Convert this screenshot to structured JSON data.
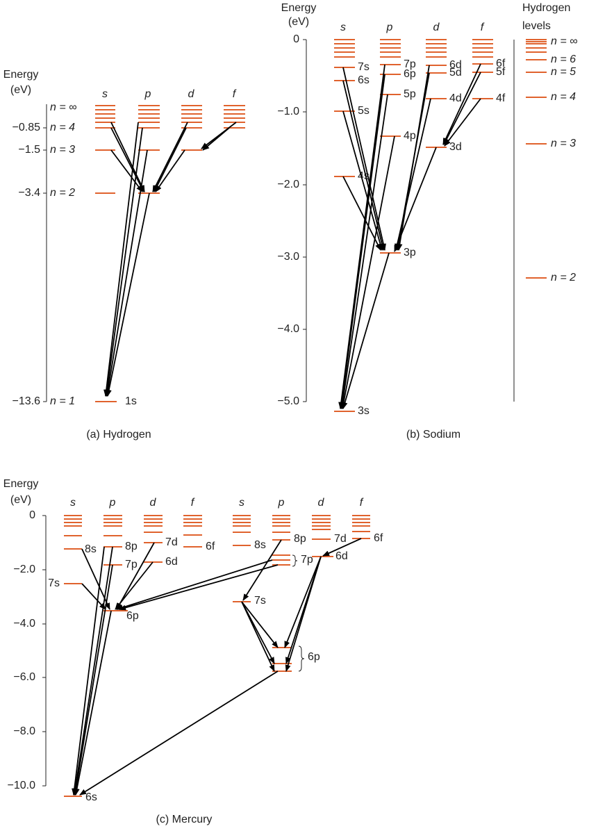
{
  "hydrogen": {
    "caption": "(a) Hydrogen",
    "axis_title": [
      "Energy",
      "(eV)"
    ],
    "ticks": [
      "−0.85",
      "−1.5",
      "−3.4",
      "−13.6"
    ],
    "columns": [
      "s",
      "p",
      "d",
      "f"
    ],
    "levels": [
      "n = ∞",
      "n = 4",
      "n = 3",
      "n = 2",
      "n = 1"
    ],
    "ground": "1s"
  },
  "sodium": {
    "caption": "(b) Sodium",
    "axis_title": [
      "Energy",
      "(eV)"
    ],
    "ticks": [
      "0",
      "−1.0",
      "−2.0",
      "−3.0",
      "−4.0",
      "−5.0"
    ],
    "columns": [
      "s",
      "p",
      "d",
      "f"
    ],
    "levels": {
      "s": [
        "7s",
        "6s",
        "5s",
        "4s",
        "3s"
      ],
      "p": [
        "7p",
        "6p",
        "5p",
        "4p",
        "3p"
      ],
      "d": [
        "6d",
        "5d",
        "4d",
        "3d"
      ],
      "f": [
        "6f",
        "5f",
        "4f"
      ]
    },
    "hydrogen_levels": {
      "title": [
        "Hydrogen",
        "levels"
      ],
      "labels": [
        "n = ∞",
        "n = 6",
        "n = 5",
        "n = 4",
        "n = 3",
        "n = 2"
      ]
    }
  },
  "mercury": {
    "caption": "(c) Mercury",
    "axis_title": [
      "Energy",
      "(eV)"
    ],
    "ticks": [
      "0",
      "−2.0",
      "−4.0",
      "−6.0",
      "−8.0",
      "−10.0"
    ],
    "columns": [
      "s",
      "p",
      "d",
      "f",
      "s",
      "p",
      "d",
      "f"
    ],
    "left_labels": [
      "8s",
      "7s",
      "8p",
      "7p",
      "7d",
      "6d",
      "6f",
      "6p",
      "6s"
    ],
    "right_labels": [
      "8s",
      "7s",
      "8p",
      "7p",
      "7d",
      "6d",
      "6f",
      "6p"
    ]
  }
}
